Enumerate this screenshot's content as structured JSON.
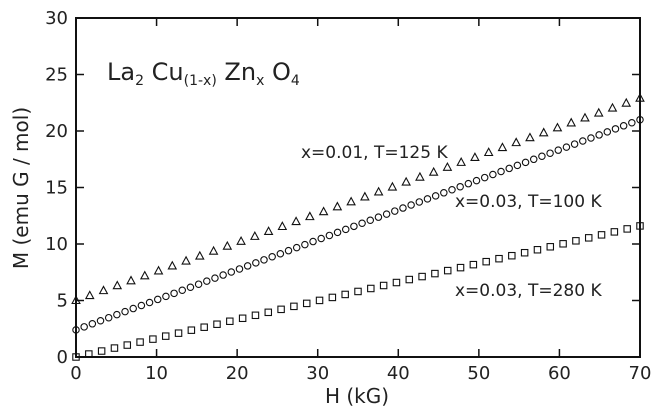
{
  "chart_data": {
    "type": "scatter",
    "annotation": {
      "base": "La",
      "s1": "2",
      "cu": " Cu",
      "s2": "(1-x)",
      "zn": " Zn",
      "s3": "x",
      "o": " O",
      "s4": "4"
    },
    "xlabel": "H (kG)",
    "ylabel": "M (emu G / mol)",
    "xlim": [
      0,
      70
    ],
    "ylim": [
      0,
      30
    ],
    "xticks": [
      0,
      10,
      20,
      30,
      40,
      50,
      60,
      70
    ],
    "yticks": [
      0,
      5,
      10,
      15,
      20,
      25,
      30
    ],
    "grid": false,
    "series": [
      {
        "name": "x=0.01, T=125 K",
        "marker": "triangle",
        "x_start": 0,
        "x_end": 70,
        "points": 42,
        "y_start": 5.0,
        "y_end": 22.9
      },
      {
        "name": "x=0.03, T=100 K",
        "marker": "circle",
        "x_start": 0,
        "x_end": 70,
        "points": 70,
        "y_start": 2.4,
        "y_end": 21.0
      },
      {
        "name": "x=0.03, T=280 K",
        "marker": "square",
        "x_start": 0,
        "x_end": 70,
        "points": 45,
        "y_start": 0.0,
        "y_end": 11.6
      }
    ]
  }
}
